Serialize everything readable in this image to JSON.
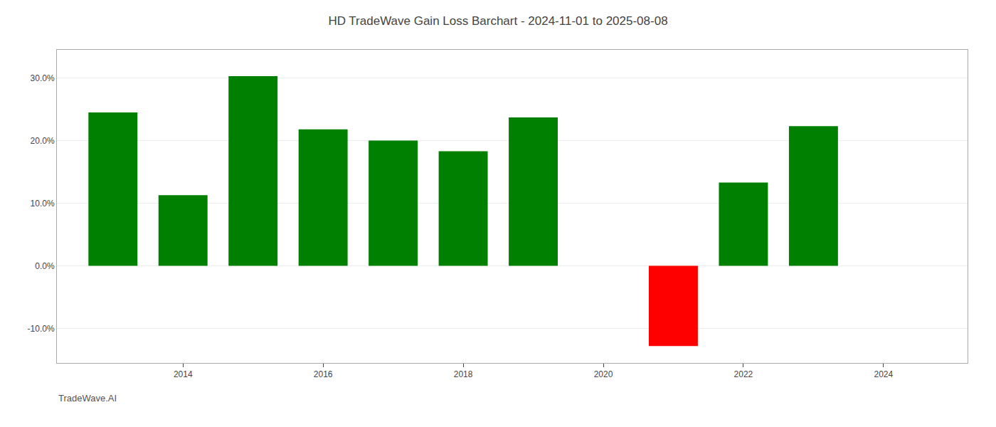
{
  "chart_data": {
    "type": "bar",
    "title": "HD TradeWave Gain Loss Barchart - 2024-11-01 to 2025-08-08",
    "annotations": [
      {
        "text": "TradeWave.AI"
      }
    ],
    "x": [
      2013,
      2014,
      2015,
      2016,
      2017,
      2018,
      2019,
      2021,
      2022,
      2023
    ],
    "values": [
      0.245,
      0.113,
      0.303,
      0.218,
      0.2,
      0.183,
      0.237,
      -0.128,
      0.133,
      0.223
    ],
    "colors": [
      "#008000",
      "#008000",
      "#008000",
      "#008000",
      "#008000",
      "#008000",
      "#008000",
      "#ff0000",
      "#008000",
      "#008000"
    ],
    "xlim": [
      2012.2,
      2025.2
    ],
    "xticks": [
      2014,
      2016,
      2018,
      2020,
      2022,
      2024
    ],
    "ylim": [
      -0.155,
      0.345
    ],
    "yticks": [
      {
        "value": -0.1,
        "label": "-10.0%"
      },
      {
        "value": 0.0,
        "label": "0.0%"
      },
      {
        "value": 0.1,
        "label": "10.0%"
      },
      {
        "value": 0.2,
        "label": "20.0%"
      },
      {
        "value": 0.3,
        "label": "30.0%"
      }
    ],
    "grid": true
  }
}
